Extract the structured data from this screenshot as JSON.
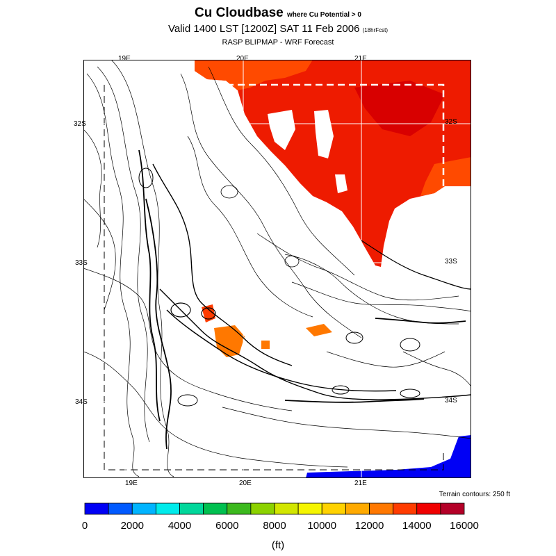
{
  "title": {
    "main": "Cu Cloudbase",
    "qualifier": "where Cu Potential > 0"
  },
  "subtitle": {
    "valid": "Valid 1400 LST [1200Z] SAT 11 Feb 2006",
    "fcst": "(18hrFcst)"
  },
  "source": "RASP BLIPMAP - WRF Forecast",
  "axes": {
    "lon_top": [
      "19E",
      "20E",
      "21E"
    ],
    "lon_bottom": [
      "19E",
      "20E",
      "21E"
    ],
    "lat_left": [
      "32S",
      "33S",
      "34S"
    ],
    "lat_right": [
      "32S",
      "33S",
      "34S"
    ]
  },
  "terrain_note": "Terrain contours: 250 ft",
  "colorbar": {
    "units": "(ft)",
    "min": 0,
    "max": 16000,
    "tick_labels": [
      "0",
      "2000",
      "4000",
      "6000",
      "8000",
      "10000",
      "12000",
      "14000",
      "16000"
    ],
    "colors": [
      "#0000f5",
      "#005aff",
      "#00b4ff",
      "#00ebeb",
      "#00d79b",
      "#00c050",
      "#3cb91e",
      "#8cd200",
      "#d2e600",
      "#f5f500",
      "#ffd200",
      "#ffaa00",
      "#ff7800",
      "#ff3c00",
      "#f00000",
      "#b40028"
    ]
  }
}
